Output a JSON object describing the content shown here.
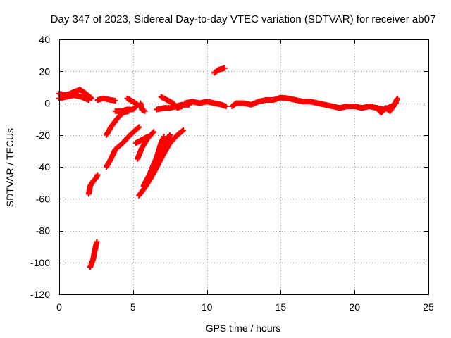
{
  "chart_data": {
    "type": "scatter",
    "title": "Day 347 of 2023, Sidereal Day-to-day VTEC variation (SDTVAR) for receiver ab07",
    "xlabel": "GPS time / hours",
    "ylabel": "SDTVAR / TECUs",
    "xlim": [
      0,
      25
    ],
    "ylim": [
      -120,
      40
    ],
    "xticks": [
      "0",
      "5",
      "10",
      "15",
      "20",
      "25"
    ],
    "yticks": [
      "40",
      "20",
      "0",
      "-20",
      "-40",
      "-60",
      "-80",
      "-100",
      "-120"
    ],
    "grid": true,
    "marker": "plus",
    "series": [
      {
        "name": "SDTVAR",
        "color": "#ff0000",
        "segments": [
          [
            [
              0.0,
              6
            ],
            [
              0.5,
              5
            ],
            [
              1.0,
              7
            ],
            [
              1.4,
              8.5
            ],
            [
              1.8,
              6
            ],
            [
              2.2,
              3
            ]
          ],
          [
            [
              0.0,
              3
            ],
            [
              0.5,
              4
            ],
            [
              1.0,
              5
            ],
            [
              1.5,
              4
            ],
            [
              2.0,
              2
            ]
          ],
          [
            [
              2.6,
              2
            ],
            [
              3.0,
              3
            ],
            [
              3.5,
              2
            ],
            [
              3.8,
              1.5
            ]
          ],
          [
            [
              4.6,
              3
            ],
            [
              5.0,
              1
            ],
            [
              5.3,
              -1
            ],
            [
              5.0,
              -4
            ],
            [
              4.6,
              -4
            ],
            [
              4.2,
              -5
            ],
            [
              3.8,
              -5
            ]
          ],
          [
            [
              5.5,
              0
            ],
            [
              5.6,
              -4
            ],
            [
              5.8,
              -5
            ]
          ],
          [
            [
              3.2,
              -20
            ],
            [
              3.5,
              -15
            ],
            [
              3.9,
              -10
            ],
            [
              4.3,
              -6
            ],
            [
              4.7,
              -5
            ]
          ],
          [
            [
              3.2,
              -40
            ],
            [
              3.5,
              -35
            ],
            [
              3.8,
              -29
            ],
            [
              4.3,
              -25
            ],
            [
              4.8,
              -20
            ],
            [
              5.4,
              -15
            ]
          ],
          [
            [
              2.0,
              -57
            ],
            [
              2.1,
              -52
            ],
            [
              2.3,
              -49
            ],
            [
              2.5,
              -47
            ],
            [
              2.6,
              -45
            ]
          ],
          [
            [
              2.1,
              -103
            ],
            [
              2.3,
              -98
            ],
            [
              2.4,
              -93
            ],
            [
              2.55,
              -87
            ]
          ],
          [
            [
              5.3,
              -35
            ],
            [
              5.6,
              -28
            ],
            [
              6.0,
              -22
            ],
            [
              6.4,
              -18
            ]
          ],
          [
            [
              5.2,
              -25
            ],
            [
              5.6,
              -23
            ],
            [
              6.0,
              -21
            ]
          ],
          [
            [
              5.4,
              -58
            ],
            [
              5.8,
              -53
            ],
            [
              6.2,
              -47
            ],
            [
              6.7,
              -38
            ],
            [
              7.2,
              -26
            ],
            [
              7.5,
              -20
            ]
          ],
          [
            [
              5.7,
              -52
            ],
            [
              6.1,
              -45
            ],
            [
              6.6,
              -34
            ],
            [
              6.9,
              -25
            ],
            [
              7.1,
              -21
            ]
          ],
          [
            [
              6.0,
              -50
            ],
            [
              6.5,
              -42
            ],
            [
              7.0,
              -33
            ],
            [
              7.5,
              -25
            ],
            [
              8.0,
              -20
            ],
            [
              8.4,
              -17
            ]
          ],
          [
            [
              6.6,
              -4
            ],
            [
              7.1,
              -3
            ],
            [
              7.5,
              -3
            ],
            [
              7.9,
              -2
            ],
            [
              8.3,
              -1
            ],
            [
              8.8,
              -1
            ]
          ],
          [
            [
              6.9,
              4
            ],
            [
              7.3,
              2
            ],
            [
              7.7,
              0
            ],
            [
              8.0,
              -3
            ],
            [
              8.3,
              -2
            ]
          ],
          [
            [
              8.5,
              0
            ],
            [
              9.0,
              1
            ],
            [
              9.5,
              0
            ],
            [
              10.0,
              1
            ],
            [
              10.5,
              0
            ],
            [
              11.0,
              -1
            ],
            [
              11.3,
              -2
            ]
          ],
          [
            [
              10.5,
              19
            ],
            [
              10.8,
              21
            ],
            [
              11.2,
              22
            ]
          ],
          [
            [
              11.7,
              -2
            ],
            [
              12.0,
              0
            ],
            [
              12.5,
              0
            ],
            [
              13.0,
              -1
            ],
            [
              13.5,
              1
            ],
            [
              14.0,
              2
            ],
            [
              14.5,
              2
            ],
            [
              15.0,
              3.5
            ],
            [
              15.5,
              3
            ],
            [
              16.0,
              2
            ],
            [
              16.5,
              1
            ],
            [
              17.0,
              1
            ],
            [
              17.5,
              0
            ],
            [
              18.0,
              -1
            ],
            [
              18.5,
              -2
            ],
            [
              19.0,
              -3
            ],
            [
              19.5,
              -2
            ],
            [
              20.0,
              -2
            ],
            [
              20.5,
              -3
            ],
            [
              21.0,
              -2
            ],
            [
              21.5,
              -3
            ],
            [
              22.0,
              -4
            ],
            [
              22.5,
              -2
            ],
            [
              22.8,
              0
            ]
          ],
          [
            [
              21.5,
              -3
            ],
            [
              21.8,
              -6
            ],
            [
              22.1,
              -3
            ],
            [
              22.4,
              -5
            ],
            [
              22.7,
              -1
            ],
            [
              22.9,
              3
            ]
          ]
        ]
      }
    ]
  }
}
